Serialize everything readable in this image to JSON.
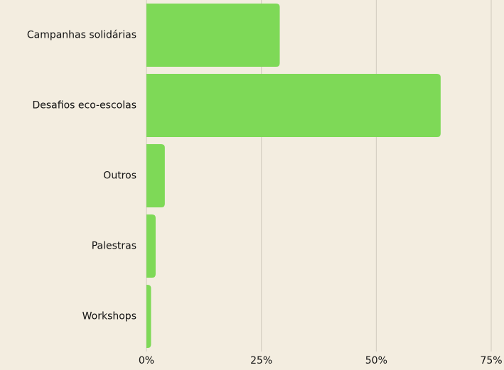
{
  "chart_data": {
    "type": "barh",
    "categories": [
      "Campanhas solidárias",
      "Desafios eco-escolas",
      "Outros",
      "Palestras",
      "Workshops"
    ],
    "values": [
      29,
      64,
      4,
      2,
      1
    ],
    "color": "#7ed957",
    "xlim": [
      0,
      75
    ],
    "xticks": [
      {
        "value": 0,
        "label": "0%"
      },
      {
        "value": 25,
        "label": "25%"
      },
      {
        "value": 50,
        "label": "50%"
      },
      {
        "value": 75,
        "label": "75%"
      }
    ],
    "grid": true
  }
}
